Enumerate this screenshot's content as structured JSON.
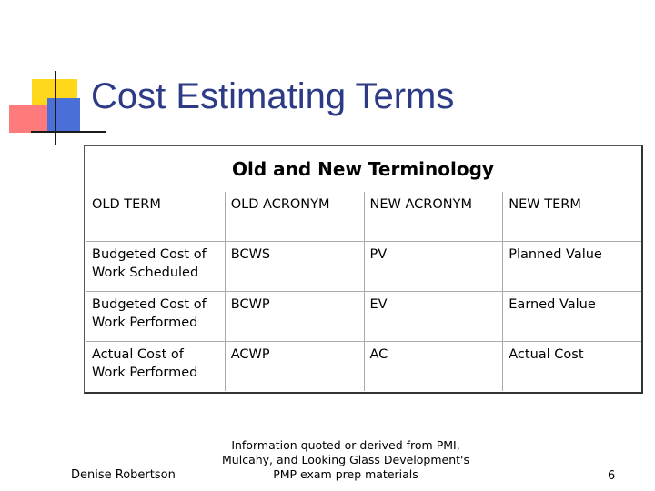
{
  "slide": {
    "title": "Cost Estimating Terms"
  },
  "table": {
    "heading": "Old and New Terminology",
    "columns": [
      "OLD TERM",
      "OLD ACRONYM",
      "NEW ACRONYM",
      "NEW TERM"
    ],
    "rows": [
      [
        "Budgeted Cost of Work Scheduled",
        "BCWS",
        "PV",
        "Planned Value"
      ],
      [
        "Budgeted Cost of Work Performed",
        "BCWP",
        "EV",
        "Earned Value"
      ],
      [
        "Actual Cost of Work Performed",
        "ACWP",
        "AC",
        "Actual Cost"
      ]
    ]
  },
  "footer": {
    "author": "Denise Robertson",
    "source_lines": [
      "Information quoted or derived from PMI,",
      "Mulcahy, and Looking Glass Development's",
      "PMP exam prep materials"
    ],
    "page_number": "6"
  }
}
